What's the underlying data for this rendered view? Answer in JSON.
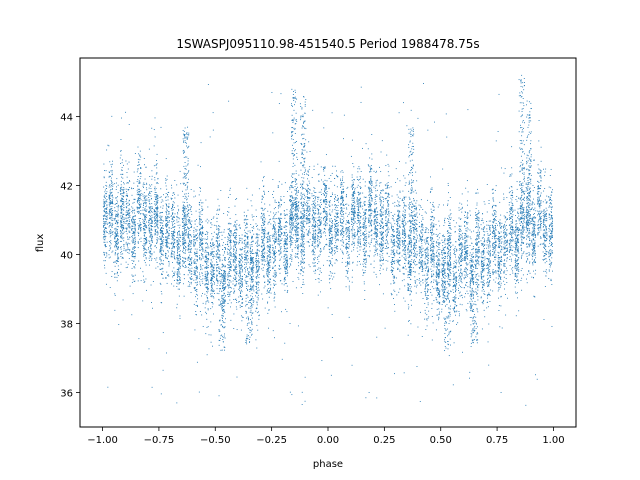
{
  "chart_data": {
    "type": "scatter",
    "title": "1SWASPJ095110.98-451540.5 Period 1988478.75s",
    "xlabel": "phase",
    "ylabel": "flux",
    "xlim": [
      -1.1,
      1.1
    ],
    "ylim": [
      35.0,
      45.7
    ],
    "xticks": [
      -1.0,
      -0.75,
      -0.5,
      -0.25,
      0.0,
      0.25,
      0.5,
      0.75,
      1.0
    ],
    "xtick_labels": [
      "−1.00",
      "−0.75",
      "−0.50",
      "−0.25",
      "0.00",
      "0.25",
      "0.50",
      "0.75",
      "1.00"
    ],
    "yticks": [
      36,
      38,
      40,
      42,
      44
    ],
    "ytick_labels": [
      "36",
      "38",
      "40",
      "42",
      "44"
    ],
    "grid": false,
    "marker_color": "#1f77b4",
    "series": [
      {
        "profile_x": [
          -1.0,
          -0.9,
          -0.8,
          -0.7,
          -0.6,
          -0.5,
          -0.4,
          -0.3,
          -0.2,
          -0.1,
          0.0,
          0.1,
          0.2,
          0.3,
          0.4,
          0.5,
          0.6,
          0.7,
          0.8,
          0.9,
          1.0
        ],
        "profile_y": [
          41.0,
          40.9,
          41.1,
          40.5,
          40.2,
          39.6,
          39.8,
          39.9,
          40.5,
          40.9,
          41.0,
          40.9,
          41.1,
          40.5,
          40.2,
          39.6,
          39.8,
          39.9,
          40.5,
          40.9,
          41.0
        ],
        "scatter_sd": 0.7,
        "spikes": [
          {
            "x": -0.11,
            "y_max": 44.6
          },
          {
            "x": -0.15,
            "y_max": 44.8
          },
          {
            "x": 0.86,
            "y_max": 45.2
          },
          {
            "x": 0.89,
            "y_max": 44.5
          },
          {
            "x": -0.63,
            "y_max": 43.7
          },
          {
            "x": 0.37,
            "y_max": 43.7
          }
        ],
        "dips": [
          {
            "x": -0.47,
            "y_min": 37.2
          },
          {
            "x": 0.53,
            "y_min": 37.2
          },
          {
            "x": -0.35,
            "y_min": 37.4
          },
          {
            "x": 0.65,
            "y_min": 37.4
          }
        ],
        "n_points": 11000
      }
    ]
  }
}
